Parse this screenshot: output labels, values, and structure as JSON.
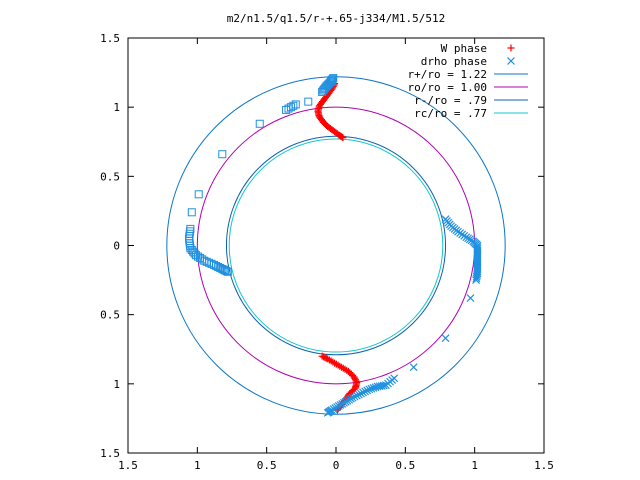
{
  "chart_data": {
    "type": "scatter",
    "title": "m2/n1.5/q1.5/r-+.65-j334/M1.5/512",
    "xlim": [
      -1.5,
      1.5
    ],
    "ylim": [
      -1.5,
      1.5
    ],
    "x_ticks": [
      -1.5,
      -1,
      -0.5,
      0,
      0.5,
      1,
      1.5
    ],
    "y_ticks": [
      -1.5,
      -1,
      -0.5,
      0,
      0.5,
      1,
      1.5
    ],
    "x_tick_labels": [
      "1.5",
      "1",
      "0.5",
      "0",
      "0.5",
      "1",
      "1.5"
    ],
    "y_tick_labels": [
      "1.5",
      "1",
      "0.5",
      "0",
      "0.5",
      "1",
      "1.5"
    ],
    "grid": false,
    "legend_position": "top-right",
    "circles": [
      {
        "label": "r+/ro = 1.22",
        "radius": 1.22,
        "color": "#0a75c8"
      },
      {
        "label": "ro/ro = 1.00",
        "radius": 1.0,
        "color": "#b000b0"
      },
      {
        "label": "r-/ro = .79",
        "radius": 0.79,
        "color": "#1060b0"
      },
      {
        "label": "rc/ro = .77",
        "radius": 0.77,
        "color": "#10c8c8"
      }
    ],
    "series": [
      {
        "name": "W phase",
        "marker": "plus",
        "color": "#ff0000",
        "points": [
          [
            0.05,
            0.78
          ],
          [
            0.02,
            0.8
          ],
          [
            -0.02,
            0.83
          ],
          [
            -0.06,
            0.86
          ],
          [
            -0.09,
            0.89
          ],
          [
            -0.12,
            0.93
          ],
          [
            -0.13,
            0.97
          ],
          [
            -0.12,
            1.01
          ],
          [
            -0.09,
            1.05
          ],
          [
            -0.06,
            1.09
          ],
          [
            -0.03,
            1.13
          ],
          [
            -0.01,
            1.17
          ],
          [
            -0.1,
            -0.8
          ],
          [
            -0.06,
            -0.82
          ],
          [
            -0.01,
            -0.85
          ],
          [
            0.04,
            -0.88
          ],
          [
            0.09,
            -0.91
          ],
          [
            0.13,
            -0.95
          ],
          [
            0.15,
            -0.99
          ],
          [
            0.14,
            -1.03
          ],
          [
            0.1,
            -1.07
          ],
          [
            0.07,
            -1.11
          ],
          [
            0.04,
            -1.15
          ],
          [
            0.01,
            -1.19
          ]
        ]
      },
      {
        "name": "drho phase",
        "marker": "cross",
        "color": "#2090e0",
        "points": [
          [
            0.79,
            0.19
          ],
          [
            0.83,
            0.14
          ],
          [
            0.88,
            0.1
          ],
          [
            0.94,
            0.06
          ],
          [
            0.99,
            0.03
          ],
          [
            1.02,
            0.0
          ],
          [
            1.02,
            -0.05
          ],
          [
            1.02,
            -0.1
          ],
          [
            1.02,
            -0.15
          ],
          [
            1.02,
            -0.2
          ],
          [
            1.01,
            -0.25
          ],
          [
            0.97,
            -0.38
          ],
          [
            0.79,
            -0.67
          ],
          [
            0.56,
            -0.88
          ],
          [
            0.42,
            -0.96
          ],
          [
            0.36,
            -1.01
          ],
          [
            0.3,
            -1.02
          ],
          [
            0.24,
            -1.04
          ],
          [
            0.18,
            -1.07
          ],
          [
            0.12,
            -1.1
          ],
          [
            0.07,
            -1.13
          ],
          [
            0.02,
            -1.16
          ],
          [
            -0.03,
            -1.19
          ],
          [
            -0.06,
            -1.21
          ]
        ]
      },
      {
        "name": "",
        "marker": "square",
        "color": "#2090e0",
        "points": [
          [
            -0.02,
            1.21
          ],
          [
            -0.04,
            1.18
          ],
          [
            -0.07,
            1.15
          ],
          [
            -0.1,
            1.11
          ],
          [
            -0.2,
            1.04
          ],
          [
            -0.29,
            1.02
          ],
          [
            -0.36,
            0.98
          ],
          [
            -0.55,
            0.88
          ],
          [
            -0.82,
            0.66
          ],
          [
            -0.99,
            0.37
          ],
          [
            -1.04,
            0.24
          ],
          [
            -1.05,
            0.12
          ],
          [
            -1.06,
            0.05
          ],
          [
            -1.05,
            -0.02
          ],
          [
            -1.01,
            -0.07
          ],
          [
            -0.95,
            -0.11
          ],
          [
            -0.88,
            -0.14
          ],
          [
            -0.82,
            -0.17
          ],
          [
            -0.78,
            -0.19
          ]
        ]
      }
    ]
  }
}
